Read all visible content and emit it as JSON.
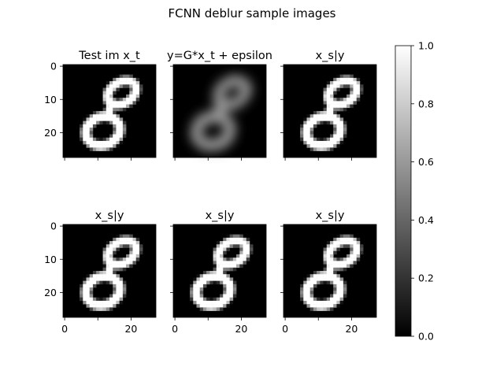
{
  "chart_data": {
    "type": "heatmap",
    "title": "FCNN deblur sample images",
    "colormap": "gray",
    "image_size": 28,
    "panels": [
      {
        "title": "Test im x_t",
        "variant": "sharp"
      },
      {
        "title": "y=G*x_t + epsilon",
        "variant": "blurred"
      },
      {
        "title": "x_s|y",
        "variant": "sharp"
      },
      {
        "title": "x_s|y",
        "variant": "sharp"
      },
      {
        "title": "x_s|y",
        "variant": "sharp"
      },
      {
        "title": "x_s|y",
        "variant": "sharp"
      }
    ],
    "x_ticks": [
      0,
      10,
      20
    ],
    "x_tick_labels": [
      "0",
      "20"
    ],
    "x_tick_label_values": [
      0,
      20
    ],
    "y_ticks": [
      0,
      10,
      20
    ],
    "y_tick_labels": [
      "0",
      "10",
      "20"
    ],
    "xlim": [
      -0.5,
      27.5
    ],
    "ylim": [
      27.5,
      -0.5
    ],
    "colorbar": {
      "range": [
        0.0,
        1.0
      ],
      "ticks": [
        0.0,
        0.2,
        0.4,
        0.6,
        0.8,
        1.0
      ],
      "tick_labels": [
        "0.0",
        "0.2",
        "0.4",
        "0.6",
        "0.8",
        "1.0"
      ]
    },
    "grid": false,
    "legend": "none"
  }
}
